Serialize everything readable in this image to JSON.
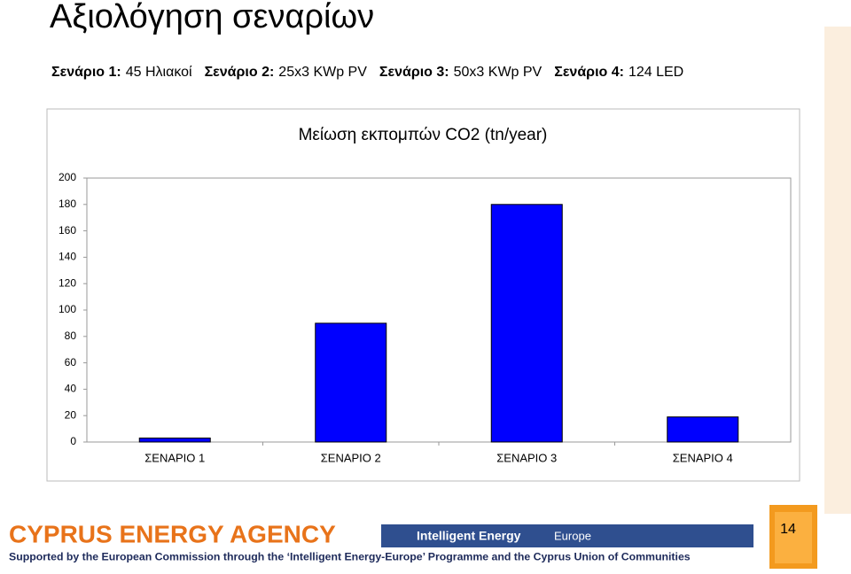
{
  "slide": {
    "title": "Αξιολόγηση σεναρίων",
    "scenarios": [
      {
        "label": "Σενάριο 1:",
        "text": "45 Ηλιακοί"
      },
      {
        "label": "Σενάριο 2:",
        "text": "25x3 KWp PV"
      },
      {
        "label": "Σενάριο 3:",
        "text": "50x3 KWp PV"
      },
      {
        "label": "Σενάριο 4:",
        "text": "124 LED"
      }
    ],
    "footer": {
      "agency": "CYPRUS ENERGY AGENCY",
      "support": "Supported by the European Commission through the ‘Intelligent Energy-Europe’ Programme and the Cyprus Union of Communities",
      "programme": "Intelligent Energy",
      "europe": "Europe",
      "page": "14"
    }
  },
  "chart_data": {
    "type": "bar",
    "title": "Μείωση εκπομπών CO2 (tn/year)",
    "categories": [
      "ΣΕΝΑΡΙΟ 1",
      "ΣΕΝΑΡΙΟ 2",
      "ΣΕΝΑΡΙΟ 3",
      "ΣΕΝΑΡΙΟ 4"
    ],
    "values": [
      3,
      90,
      180,
      19
    ],
    "color": "#0000ff",
    "ylim": [
      0,
      200
    ],
    "yticks": [
      0,
      20,
      40,
      60,
      80,
      100,
      120,
      140,
      160,
      180,
      200
    ],
    "grid": false
  }
}
